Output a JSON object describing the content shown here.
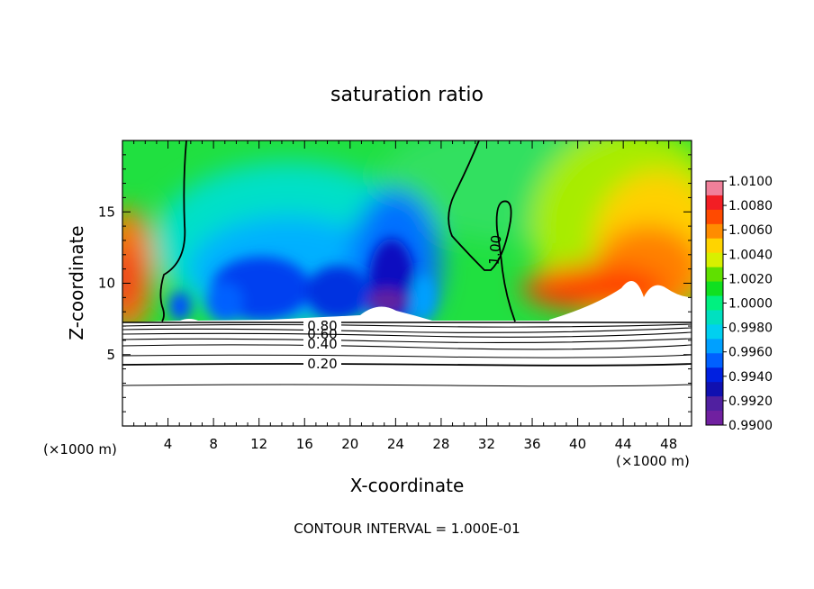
{
  "chart_data": {
    "type": "heatmap",
    "title": "saturation ratio",
    "xlabel": "X-coordinate",
    "ylabel": "Z-coordinate",
    "x_unit_left": "(×1000 m)",
    "x_unit_right": "(×1000 m)",
    "xlim": [
      0,
      50
    ],
    "ylim": [
      0,
      20
    ],
    "x_ticks": [
      4,
      8,
      12,
      16,
      20,
      24,
      28,
      32,
      36,
      40,
      44,
      48
    ],
    "y_ticks": [
      5,
      10,
      15
    ],
    "colorbar": {
      "min": 0.99,
      "max": 1.01,
      "labels": [
        "1.0100",
        "1.0080",
        "1.0060",
        "1.0040",
        "1.0020",
        "1.0000",
        "0.9980",
        "0.9960",
        "0.9940",
        "0.9920",
        "0.9900"
      ],
      "colors": [
        "#f0809a",
        "#f21e24",
        "#ff4a00",
        "#ff8c00",
        "#ffd400",
        "#d8f000",
        "#60e000",
        "#10e020",
        "#00f080",
        "#00e0c0",
        "#00d0f0",
        "#00a0ff",
        "#0060ff",
        "#0020e0",
        "#1010b0",
        "#5020a0",
        "#7020a0"
      ]
    },
    "contour_labels": [
      {
        "text": "1.00",
        "x": 33.0,
        "y": 12.8
      },
      {
        "text": "0.80",
        "x": 17.6,
        "y": 7.1
      },
      {
        "text": "0.60",
        "x": 17.6,
        "y": 6.6
      },
      {
        "text": "0.40",
        "x": 17.6,
        "y": 5.8
      },
      {
        "text": "0.20",
        "x": 17.6,
        "y": 4.3
      }
    ],
    "footer": "CONTOUR INTERVAL = 1.000E-01"
  }
}
